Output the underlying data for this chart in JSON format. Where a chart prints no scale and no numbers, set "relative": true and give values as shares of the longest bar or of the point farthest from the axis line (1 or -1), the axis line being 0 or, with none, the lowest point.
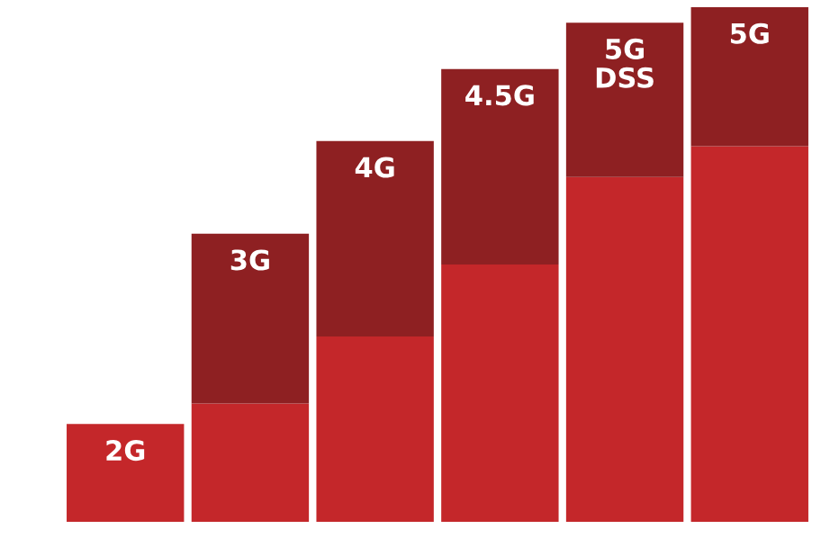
{
  "chart_data": {
    "type": "bar",
    "stacked": true,
    "relative": true,
    "categories": [
      "2G",
      "3G",
      "4G",
      "4.5G",
      "5G\nDSS",
      "5G"
    ],
    "series": [
      {
        "color": "#c4272a",
        "values": [
          0.19,
          0.23,
          0.36,
          0.5,
          0.67,
          0.73
        ]
      },
      {
        "color": "#8e2022",
        "values": [
          null,
          0.33,
          0.38,
          0.38,
          0.3,
          0.27
        ]
      }
    ]
  }
}
